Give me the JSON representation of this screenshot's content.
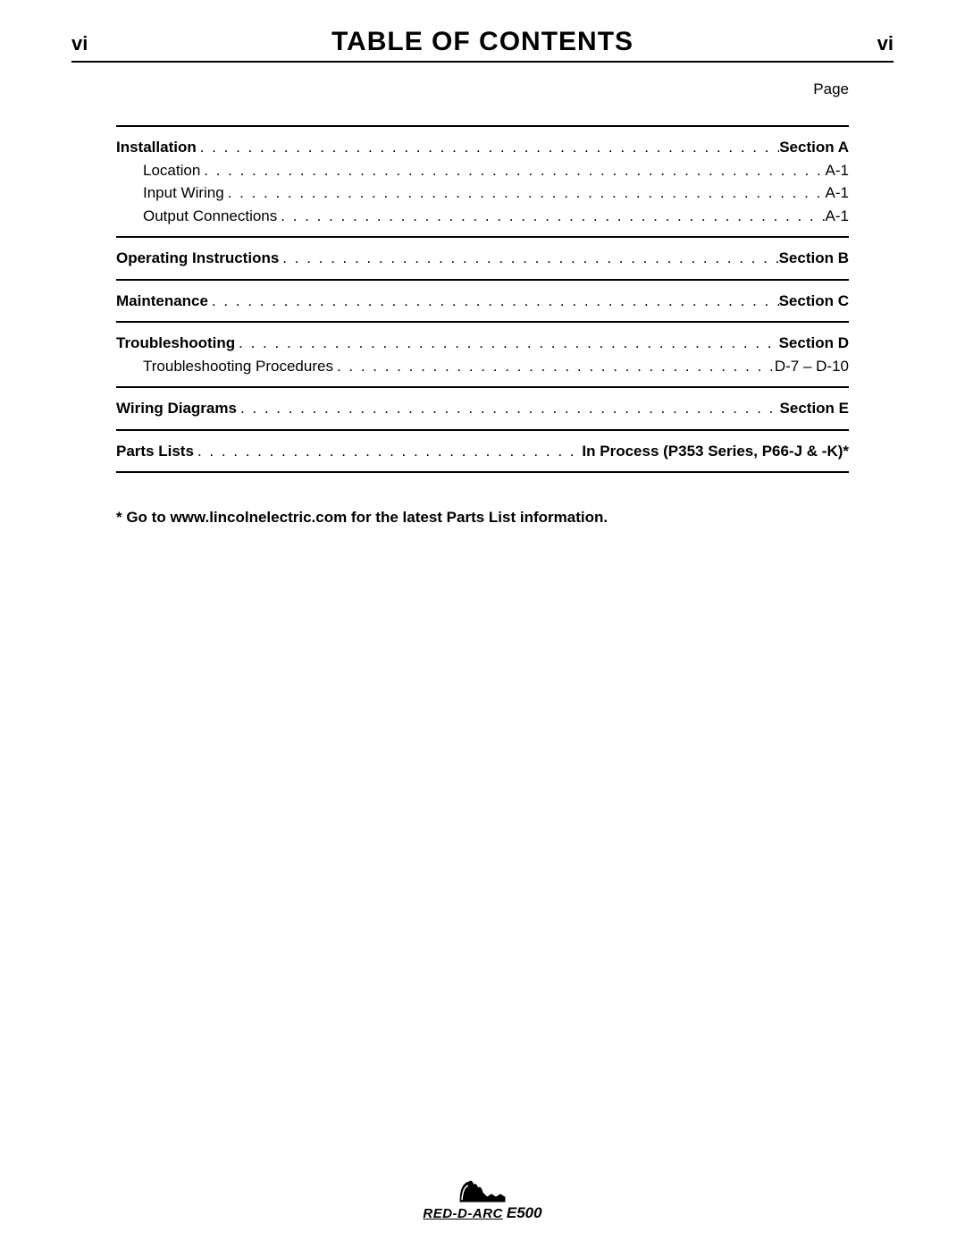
{
  "header": {
    "left": "vi",
    "title": "TABLE OF CONTENTS",
    "right": "vi"
  },
  "page_label": "Page",
  "sections": [
    {
      "rows": [
        {
          "label": "Installation",
          "page": "Section A",
          "bold": true,
          "sub": false
        },
        {
          "label": "Location",
          "page": "A-1",
          "bold": false,
          "sub": true
        },
        {
          "label": "Input Wiring",
          "page": "A-1",
          "bold": false,
          "sub": true
        },
        {
          "label": "Output Connections",
          "page": "A-1",
          "bold": false,
          "sub": true
        }
      ]
    },
    {
      "rows": [
        {
          "label": "Operating Instructions",
          "page": "Section B",
          "bold": true,
          "sub": false
        }
      ]
    },
    {
      "rows": [
        {
          "label": "Maintenance",
          "page": "Section C",
          "bold": true,
          "sub": false
        }
      ]
    },
    {
      "rows": [
        {
          "label": "Troubleshooting",
          "page": "Section D",
          "bold": true,
          "sub": false
        },
        {
          "label": "Troubleshooting Procedures",
          "page": "D-7 – D-10",
          "bold": false,
          "sub": true
        }
      ]
    },
    {
      "rows": [
        {
          "label": "Wiring Diagrams",
          "page": "Section E",
          "bold": true,
          "sub": false
        }
      ]
    },
    {
      "rows": [
        {
          "label": "Parts Lists",
          "page": "In Process (P353 Series, P66-J & -K)*",
          "bold": true,
          "sub": false
        }
      ]
    }
  ],
  "footnote": "* Go to www.lincolnelectric.com for the latest Parts List information.",
  "footer": {
    "brand": "RED-D-ARC",
    "model": "E500"
  }
}
